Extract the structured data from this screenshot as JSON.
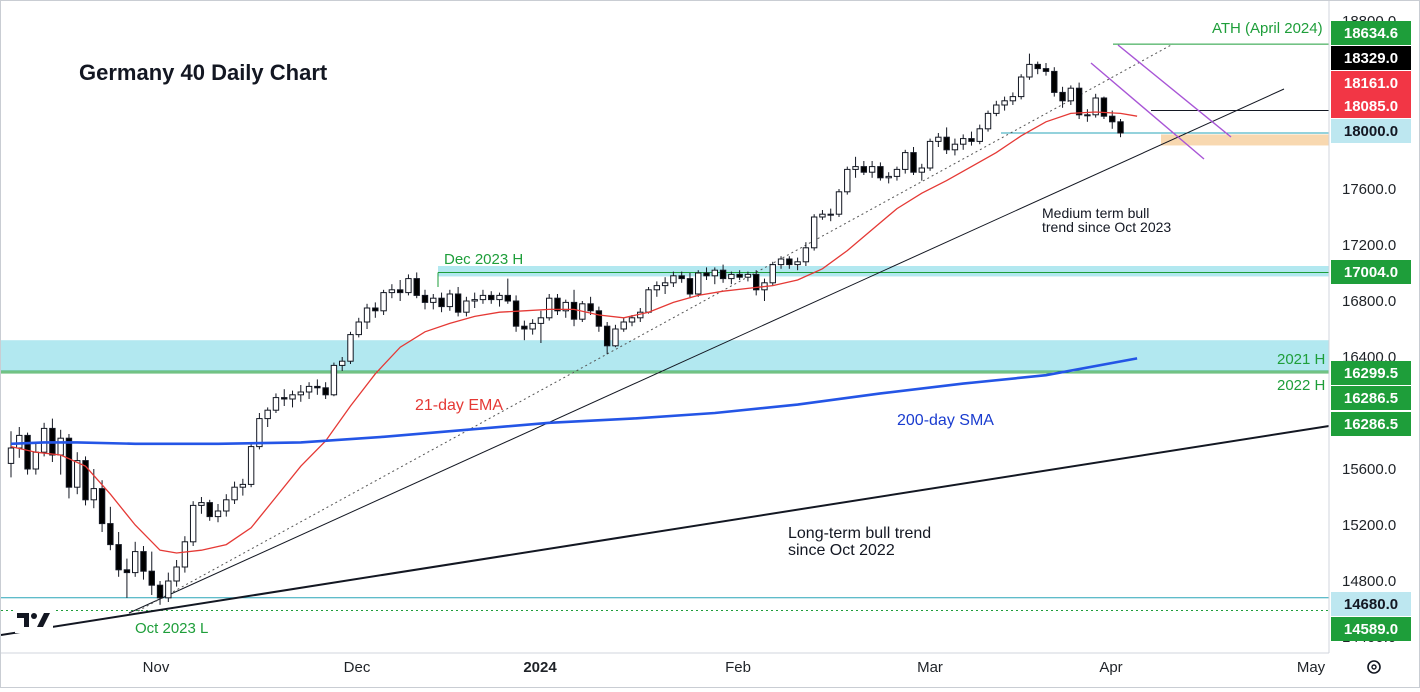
{
  "chart_data": {
    "type": "candlestick",
    "title": "Germany 40 Daily Chart",
    "y_axis": {
      "ylim": [
        14400,
        18900
      ],
      "ticks": [
        "18800.0",
        "17600.0",
        "17200.0",
        "16800.0",
        "16400.0",
        "15600.0",
        "15200.0",
        "14800.0",
        "14400.0"
      ]
    },
    "x_axis": {
      "labels": [
        "Nov",
        "Dec",
        "2024",
        "Feb",
        "Mar",
        "Apr",
        "May"
      ]
    },
    "price_badges": [
      {
        "label": "18634.6",
        "value": 18634.6,
        "color": "#1e9e3a",
        "text_color": "#ffffff"
      },
      {
        "label": "18329.0",
        "value": 18329.0,
        "color": "#000000",
        "text_color": "#ffffff"
      },
      {
        "label": "18161.0",
        "value": 18161.0,
        "color": "#f23645",
        "text_color": "#ffffff"
      },
      {
        "label": "18085.0",
        "value": 18085.0,
        "color": "#f23645",
        "text_color": "#ffffff"
      },
      {
        "label": "18000.0",
        "value": 18000.0,
        "color": "#bde7f0",
        "text_color": "#131722"
      },
      {
        "label": "17004.0",
        "value": 17004.0,
        "color": "#1e9e3a",
        "text_color": "#ffffff"
      },
      {
        "label": "16299.5",
        "value": 16299.5,
        "color": "#1e9e3a",
        "text_color": "#ffffff"
      },
      {
        "label": "16286.5",
        "value": 16286.5,
        "color": "#1e9e3a",
        "text_color": "#ffffff"
      },
      {
        "label": "16286.5",
        "value": 16286.5,
        "color": "#1e9e3a",
        "text_color": "#ffffff"
      },
      {
        "label": "14680.0",
        "value": 14680.0,
        "color": "#bde7f0",
        "text_color": "#131722"
      },
      {
        "label": "14589.0",
        "value": 14589.0,
        "color": "#1e9e3a",
        "text_color": "#ffffff"
      }
    ],
    "annotations": {
      "ath": "ATH (April 2024)",
      "dec_high": "Dec 2023 H",
      "h2021": "2021 H",
      "h2022": "2022 H",
      "oct_low": "Oct 2023 L",
      "ema": "21-day EMA",
      "sma": "200-day SMA",
      "medium_trend_1": "Medium term bull",
      "medium_trend_2": "trend since Oct 2023",
      "long_trend_1": "Long-term bull trend",
      "long_trend_2": "since Oct 2022"
    },
    "logo": "TV",
    "settings_icon": "gear-icon",
    "colors": {
      "bull_body": "#ffffff",
      "bear_body": "#000000",
      "ema": "#e53935",
      "sma": "#2455e6",
      "zone_blue": "#7fd8e6",
      "zone_orange": "#f5c78e",
      "green": "#1e9e3a",
      "purple": "#a855d6"
    },
    "ohlc": [
      [
        15640,
        15870,
        15540,
        15750
      ],
      [
        15750,
        15900,
        15680,
        15840
      ],
      [
        15840,
        15860,
        15560,
        15600
      ],
      [
        15600,
        15780,
        15560,
        15720
      ],
      [
        15720,
        15930,
        15690,
        15890
      ],
      [
        15890,
        15960,
        15650,
        15700
      ],
      [
        15700,
        15880,
        15560,
        15820
      ],
      [
        15820,
        15850,
        15390,
        15470
      ],
      [
        15470,
        15720,
        15420,
        15660
      ],
      [
        15660,
        15690,
        15340,
        15380
      ],
      [
        15380,
        15600,
        15320,
        15460
      ],
      [
        15460,
        15520,
        15150,
        15210
      ],
      [
        15210,
        15330,
        15020,
        15060
      ],
      [
        15060,
        15150,
        14830,
        14880
      ],
      [
        14880,
        14960,
        14680,
        14860
      ],
      [
        14860,
        15080,
        14830,
        15010
      ],
      [
        15010,
        15050,
        14810,
        14870
      ],
      [
        14870,
        15010,
        14700,
        14770
      ],
      [
        14770,
        14800,
        14630,
        14680
      ],
      [
        14680,
        14860,
        14650,
        14800
      ],
      [
        14800,
        14950,
        14760,
        14900
      ],
      [
        14900,
        15120,
        14860,
        15080
      ],
      [
        15080,
        15370,
        15050,
        15340
      ],
      [
        15340,
        15400,
        15280,
        15360
      ],
      [
        15360,
        15380,
        15230,
        15260
      ],
      [
        15260,
        15350,
        15220,
        15300
      ],
      [
        15300,
        15420,
        15260,
        15380
      ],
      [
        15380,
        15510,
        15350,
        15470
      ],
      [
        15470,
        15530,
        15410,
        15490
      ],
      [
        15490,
        15780,
        15470,
        15760
      ],
      [
        15760,
        16000,
        15740,
        15960
      ],
      [
        15960,
        16040,
        15900,
        16020
      ],
      [
        16020,
        16140,
        16000,
        16110
      ],
      [
        16110,
        16170,
        16050,
        16100
      ],
      [
        16100,
        16160,
        16040,
        16130
      ],
      [
        16130,
        16200,
        16080,
        16150
      ],
      [
        16150,
        16220,
        16100,
        16190
      ],
      [
        16190,
        16240,
        16130,
        16180
      ],
      [
        16180,
        16220,
        16100,
        16130
      ],
      [
        16130,
        16360,
        16120,
        16340
      ],
      [
        16340,
        16400,
        16300,
        16370
      ],
      [
        16370,
        16580,
        16350,
        16560
      ],
      [
        16560,
        16680,
        16540,
        16650
      ],
      [
        16650,
        16780,
        16600,
        16750
      ],
      [
        16750,
        16790,
        16680,
        16730
      ],
      [
        16730,
        16880,
        16700,
        16860
      ],
      [
        16860,
        16920,
        16820,
        16880
      ],
      [
        16880,
        16950,
        16800,
        16860
      ],
      [
        16860,
        16990,
        16840,
        16960
      ],
      [
        16960,
        17004,
        16820,
        16840
      ],
      [
        16840,
        16880,
        16740,
        16790
      ],
      [
        16790,
        16850,
        16740,
        16820
      ],
      [
        16820,
        16860,
        16720,
        16760
      ],
      [
        16760,
        16880,
        16730,
        16850
      ],
      [
        16850,
        16900,
        16690,
        16720
      ],
      [
        16720,
        16830,
        16690,
        16800
      ],
      [
        16800,
        16860,
        16750,
        16810
      ],
      [
        16810,
        16880,
        16780,
        16840
      ],
      [
        16840,
        16870,
        16780,
        16810
      ],
      [
        16810,
        16860,
        16760,
        16840
      ],
      [
        16840,
        16960,
        16780,
        16800
      ],
      [
        16800,
        16840,
        16580,
        16620
      ],
      [
        16620,
        16660,
        16520,
        16600
      ],
      [
        16600,
        16670,
        16560,
        16640
      ],
      [
        16640,
        16730,
        16500,
        16680
      ],
      [
        16680,
        16850,
        16660,
        16820
      ],
      [
        16820,
        16850,
        16700,
        16730
      ],
      [
        16730,
        16810,
        16680,
        16790
      ],
      [
        16790,
        16880,
        16620,
        16670
      ],
      [
        16670,
        16800,
        16650,
        16780
      ],
      [
        16780,
        16830,
        16700,
        16730
      ],
      [
        16730,
        16760,
        16580,
        16620
      ],
      [
        16620,
        16650,
        16420,
        16480
      ],
      [
        16480,
        16630,
        16470,
        16600
      ],
      [
        16600,
        16680,
        16580,
        16650
      ],
      [
        16650,
        16700,
        16620,
        16680
      ],
      [
        16680,
        16750,
        16650,
        16720
      ],
      [
        16720,
        16900,
        16710,
        16880
      ],
      [
        16880,
        16940,
        16830,
        16910
      ],
      [
        16910,
        16970,
        16850,
        16930
      ],
      [
        16930,
        17010,
        16900,
        16980
      ],
      [
        16980,
        17010,
        16930,
        16960
      ],
      [
        16960,
        17000,
        16820,
        16850
      ],
      [
        16850,
        17020,
        16830,
        17000
      ],
      [
        17000,
        17040,
        16950,
        16980
      ],
      [
        16980,
        17040,
        16920,
        17020
      ],
      [
        17020,
        17060,
        16930,
        16960
      ],
      [
        16960,
        17010,
        16920,
        16990
      ],
      [
        16990,
        17020,
        16950,
        16970
      ],
      [
        16970,
        17010,
        16940,
        16990
      ],
      [
        16990,
        17020,
        16840,
        16880
      ],
      [
        16880,
        16960,
        16800,
        16930
      ],
      [
        16930,
        17080,
        16910,
        17060
      ],
      [
        17060,
        17120,
        17030,
        17100
      ],
      [
        17100,
        17120,
        17030,
        17060
      ],
      [
        17060,
        17110,
        17020,
        17080
      ],
      [
        17080,
        17220,
        17050,
        17180
      ],
      [
        17180,
        17420,
        17160,
        17400
      ],
      [
        17400,
        17450,
        17380,
        17420
      ],
      [
        17420,
        17460,
        17370,
        17420
      ],
      [
        17420,
        17600,
        17400,
        17580
      ],
      [
        17580,
        17760,
        17560,
        17740
      ],
      [
        17740,
        17830,
        17680,
        17760
      ],
      [
        17760,
        17800,
        17700,
        17720
      ],
      [
        17720,
        17800,
        17680,
        17760
      ],
      [
        17760,
        17790,
        17660,
        17680
      ],
      [
        17680,
        17720,
        17640,
        17690
      ],
      [
        17690,
        17760,
        17660,
        17740
      ],
      [
        17740,
        17880,
        17710,
        17860
      ],
      [
        17860,
        17900,
        17700,
        17720
      ],
      [
        17720,
        17780,
        17660,
        17750
      ],
      [
        17750,
        17960,
        17730,
        17940
      ],
      [
        17940,
        18000,
        17900,
        17970
      ],
      [
        17970,
        18040,
        17850,
        17880
      ],
      [
        17880,
        17960,
        17840,
        17920
      ],
      [
        17920,
        17990,
        17880,
        17960
      ],
      [
        17960,
        18010,
        17910,
        17940
      ],
      [
        17940,
        18060,
        17920,
        18030
      ],
      [
        18030,
        18160,
        18010,
        18140
      ],
      [
        18140,
        18230,
        18120,
        18200
      ],
      [
        18200,
        18260,
        18160,
        18230
      ],
      [
        18230,
        18290,
        18200,
        18260
      ],
      [
        18260,
        18420,
        18240,
        18400
      ],
      [
        18400,
        18567,
        18380,
        18490
      ],
      [
        18490,
        18510,
        18420,
        18460
      ],
      [
        18460,
        18500,
        18410,
        18440
      ],
      [
        18440,
        18470,
        18260,
        18290
      ],
      [
        18290,
        18330,
        18180,
        18230
      ],
      [
        18230,
        18340,
        18200,
        18320
      ],
      [
        18320,
        18360,
        18100,
        18130
      ],
      [
        18130,
        18170,
        18080,
        18130
      ],
      [
        18130,
        18280,
        18110,
        18250
      ],
      [
        18250,
        18260,
        18100,
        18120
      ],
      [
        18120,
        18160,
        18030,
        18080
      ],
      [
        18080,
        18100,
        17970,
        18000
      ]
    ],
    "ema21": [
      [
        0,
        15760
      ],
      [
        3,
        15720
      ],
      [
        6,
        15700
      ],
      [
        9,
        15620
      ],
      [
        12,
        15420
      ],
      [
        15,
        15200
      ],
      [
        18,
        15020
      ],
      [
        20,
        15000
      ],
      [
        23,
        15020
      ],
      [
        26,
        15060
      ],
      [
        29,
        15180
      ],
      [
        32,
        15400
      ],
      [
        35,
        15620
      ],
      [
        38,
        15800
      ],
      [
        41,
        16050
      ],
      [
        44,
        16280
      ],
      [
        47,
        16470
      ],
      [
        50,
        16580
      ],
      [
        53,
        16640
      ],
      [
        56,
        16690
      ],
      [
        59,
        16720
      ],
      [
        62,
        16730
      ],
      [
        65,
        16740
      ],
      [
        68,
        16740
      ],
      [
        71,
        16700
      ],
      [
        74,
        16680
      ],
      [
        77,
        16720
      ],
      [
        80,
        16790
      ],
      [
        83,
        16840
      ],
      [
        86,
        16870
      ],
      [
        89,
        16890
      ],
      [
        92,
        16910
      ],
      [
        95,
        16950
      ],
      [
        98,
        17030
      ],
      [
        101,
        17160
      ],
      [
        104,
        17310
      ],
      [
        107,
        17460
      ],
      [
        110,
        17570
      ],
      [
        113,
        17660
      ],
      [
        116,
        17760
      ],
      [
        119,
        17860
      ],
      [
        122,
        17980
      ],
      [
        125,
        18080
      ],
      [
        128,
        18140
      ],
      [
        131,
        18150
      ],
      [
        134,
        18140
      ],
      [
        136,
        18120
      ]
    ],
    "sma200": [
      [
        0,
        15780
      ],
      [
        4,
        15790
      ],
      [
        8,
        15790
      ],
      [
        15,
        15780
      ],
      [
        25,
        15780
      ],
      [
        35,
        15790
      ],
      [
        45,
        15830
      ],
      [
        55,
        15880
      ],
      [
        65,
        15930
      ],
      [
        75,
        15960
      ],
      [
        85,
        16000
      ],
      [
        95,
        16060
      ],
      [
        105,
        16140
      ],
      [
        115,
        16210
      ],
      [
        125,
        16270
      ],
      [
        136,
        16390
      ]
    ]
  }
}
